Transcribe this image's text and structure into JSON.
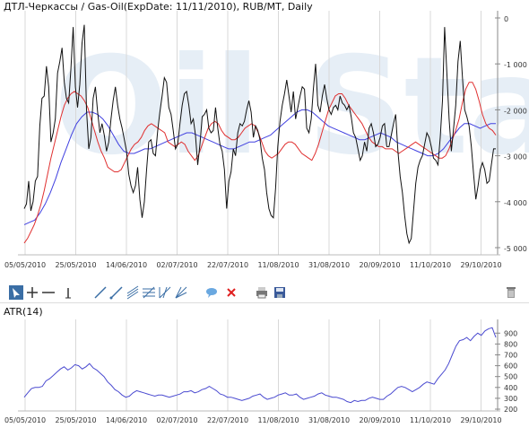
{
  "header": {
    "title": "ДТЛ-Черкассы / Gas-Oil(ExpDate: 11/11/2010), RUB/MT, Daily"
  },
  "watermark": {
    "text": "Oil Stat"
  },
  "colors": {
    "price": "#111111",
    "ma_fast": "#e03030",
    "ma_slow": "#4040e0",
    "atr": "#4a4ad0",
    "grid": "#d8d8d8",
    "axis": "#888888",
    "watermark": "#e6eef6"
  },
  "toolbar": {
    "items": [
      {
        "name": "select-tool-icon",
        "active": true
      },
      {
        "name": "crosshair-tool-icon"
      },
      {
        "name": "horizontal-line-tool-icon"
      },
      {
        "name": "vertical-line-tool-icon"
      },
      {
        "name": "trend-line-tool-icon"
      },
      {
        "name": "ray-tool-icon"
      },
      {
        "name": "channel-tool-icon"
      },
      {
        "name": "fibonacci-tool-icon"
      },
      {
        "name": "pitchfork-tool-icon"
      },
      {
        "name": "fan-tool-icon"
      },
      {
        "name": "comment-tool-icon"
      },
      {
        "name": "delete-tool-icon"
      },
      {
        "name": "print-icon"
      },
      {
        "name": "save-icon"
      },
      {
        "name": "trash-icon"
      }
    ]
  },
  "atr_panel": {
    "title": "ATR(14)"
  },
  "chart_data": [
    {
      "type": "line",
      "title": "ДТЛ-Черкассы / Gas-Oil(ExpDate: 11/11/2010), RUB/MT, Daily",
      "x_tick_labels": [
        "05/05/2010",
        "25/05/2010",
        "14/06/2010",
        "02/07/2010",
        "22/07/2010",
        "11/08/2010",
        "31/08/2010",
        "20/09/2010",
        "11/10/2010",
        "29/10/2010"
      ],
      "y_tick_labels": [
        "0",
        "-1 000",
        "-2 000",
        "-3 000",
        "-4 000",
        "-5 000"
      ],
      "ylim": [
        -5000,
        0
      ],
      "grid": true,
      "series": [
        {
          "role": "price",
          "values": [
            -4150,
            -4050,
            -3550,
            -4200,
            -4000,
            -3550,
            -3450,
            -2350,
            -1750,
            -1700,
            -1050,
            -1500,
            -2700,
            -2500,
            -2200,
            -1200,
            -950,
            -650,
            -1400,
            -1750,
            -1850,
            -1100,
            -200,
            -1500,
            -1950,
            -1450,
            -550,
            -150,
            -2000,
            -2850,
            -2600,
            -1750,
            -1500,
            -2050,
            -2500,
            -2300,
            -2550,
            -2900,
            -2700,
            -2200,
            -1800,
            -1500,
            -1900,
            -2200,
            -2400,
            -2650,
            -2900,
            -3400,
            -3650,
            -3800,
            -3650,
            -3250,
            -3950,
            -4350,
            -4000,
            -3300,
            -2700,
            -2650,
            -2950,
            -3000,
            -2450,
            -2050,
            -1700,
            -1300,
            -1400,
            -1950,
            -2100,
            -2450,
            -2850,
            -2750,
            -2300,
            -1900,
            -1650,
            -1600,
            -1900,
            -2300,
            -2200,
            -2550,
            -3200,
            -2750,
            -2150,
            -2100,
            -2000,
            -2400,
            -2500,
            -2450,
            -1950,
            -2400,
            -2750,
            -2900,
            -3300,
            -4150,
            -3550,
            -3350,
            -2850,
            -3000,
            -2500,
            -2300,
            -2350,
            -2250,
            -2000,
            -1800,
            -2050,
            -2600,
            -2350,
            -2450,
            -2650,
            -3050,
            -3300,
            -3800,
            -4150,
            -4300,
            -4350,
            -3700,
            -2800,
            -2250,
            -1900,
            -1650,
            -1350,
            -1700,
            -2050,
            -1600,
            -2200,
            -1950,
            -1700,
            -1500,
            -1550,
            -2400,
            -2500,
            -2200,
            -1550,
            -1000,
            -1900,
            -2050,
            -1700,
            -1450,
            -1750,
            -2000,
            -2100,
            -1950,
            -1900,
            -2000,
            -1700,
            -1850,
            -1900,
            -2000,
            -1900,
            -2150,
            -2500,
            -2600,
            -2850,
            -3100,
            -3000,
            -2700,
            -2900,
            -2400,
            -2300,
            -2500,
            -2800,
            -2750,
            -2600,
            -2350,
            -2300,
            -2800,
            -2800,
            -2550,
            -2300,
            -2100,
            -2900,
            -3450,
            -3800,
            -4300,
            -4700,
            -4900,
            -4800,
            -4200,
            -3600,
            -3250,
            -3100,
            -3000,
            -2750,
            -2500,
            -2600,
            -2800,
            -3050,
            -3100,
            -3200,
            -2600,
            -1800,
            -200,
            -1200,
            -2200,
            -2900,
            -2400,
            -1900,
            -950,
            -500,
            -1300,
            -2000,
            -2150,
            -2350,
            -2800,
            -3400,
            -3950,
            -3650,
            -3300,
            -3150,
            -3300,
            -3600,
            -3550,
            -3200,
            -2850,
            -2850
          ],
          "x_tick_index": [
            0,
            21,
            42,
            63,
            84,
            105,
            126,
            147,
            168,
            189
          ]
        },
        {
          "role": "ma_fast",
          "values": [
            -4900,
            -4800,
            -4650,
            -4500,
            -4300,
            -4050,
            -3750,
            -3400,
            -3050,
            -2750,
            -2450,
            -2150,
            -1900,
            -1750,
            -1650,
            -1600,
            -1650,
            -1700,
            -1800,
            -1950,
            -2200,
            -2450,
            -2700,
            -2900,
            -3050,
            -3250,
            -3300,
            -3350,
            -3350,
            -3300,
            -3150,
            -3000,
            -2850,
            -2750,
            -2700,
            -2600,
            -2450,
            -2350,
            -2300,
            -2350,
            -2400,
            -2450,
            -2500,
            -2700,
            -2750,
            -2800,
            -2750,
            -2700,
            -2750,
            -2900,
            -3000,
            -3100,
            -3000,
            -2800,
            -2600,
            -2400,
            -2300,
            -2250,
            -2300,
            -2450,
            -2550,
            -2600,
            -2650,
            -2650,
            -2600,
            -2500,
            -2400,
            -2350,
            -2300,
            -2350,
            -2500,
            -2700,
            -2900,
            -3000,
            -3050,
            -3000,
            -2950,
            -2850,
            -2750,
            -2700,
            -2700,
            -2750,
            -2850,
            -2950,
            -3000,
            -3050,
            -3100,
            -2950,
            -2750,
            -2500,
            -2250,
            -2000,
            -1850,
            -1700,
            -1650,
            -1650,
            -1750,
            -1900,
            -2000,
            -2100,
            -2200,
            -2300,
            -2450,
            -2600,
            -2700,
            -2750,
            -2800,
            -2800,
            -2850,
            -2850,
            -2850,
            -2900,
            -2950,
            -2900,
            -2850,
            -2800,
            -2750,
            -2700,
            -2750,
            -2800,
            -2850,
            -2900,
            -2950,
            -3000,
            -3050,
            -3050,
            -3000,
            -2850,
            -2650,
            -2450,
            -2200,
            -1850,
            -1550,
            -1400,
            -1400,
            -1550,
            -1800,
            -2100,
            -2300,
            -2400,
            -2450,
            -2550
          ],
          "x_tick_index": [
            0,
            14,
            28,
            42,
            56,
            70,
            84,
            98,
            112,
            126
          ]
        },
        {
          "role": "ma_slow",
          "values": [
            -4500,
            -4450,
            -4400,
            -4250,
            -4050,
            -3800,
            -3500,
            -3150,
            -2850,
            -2550,
            -2300,
            -2150,
            -2050,
            -2050,
            -2100,
            -2200,
            -2350,
            -2550,
            -2750,
            -2900,
            -2950,
            -2950,
            -2900,
            -2850,
            -2850,
            -2800,
            -2750,
            -2700,
            -2650,
            -2600,
            -2550,
            -2500,
            -2500,
            -2550,
            -2600,
            -2650,
            -2700,
            -2750,
            -2800,
            -2850,
            -2850,
            -2800,
            -2750,
            -2700,
            -2700,
            -2650,
            -2600,
            -2550,
            -2450,
            -2350,
            -2250,
            -2150,
            -2050,
            -2000,
            -2000,
            -2050,
            -2150,
            -2250,
            -2350,
            -2400,
            -2450,
            -2500,
            -2550,
            -2600,
            -2650,
            -2650,
            -2600,
            -2550,
            -2500,
            -2550,
            -2600,
            -2700,
            -2750,
            -2800,
            -2850,
            -2900,
            -2950,
            -3000,
            -3000,
            -2950,
            -2850,
            -2700,
            -2550,
            -2400,
            -2300,
            -2300,
            -2350,
            -2400,
            -2350,
            -2300,
            -2300
          ],
          "x_tick_index": [
            0,
            9,
            19,
            28,
            37,
            46,
            56,
            65,
            74,
            84
          ]
        }
      ]
    },
    {
      "type": "line",
      "title": "ATR(14)",
      "x_tick_labels": [
        "05/05/2010",
        "25/05/2010",
        "14/06/2010",
        "02/07/2010",
        "22/07/2010",
        "11/08/2010",
        "31/08/2010",
        "20/09/2010",
        "11/10/2010",
        "29/10/2010"
      ],
      "y_tick_labels": [
        "900",
        "800",
        "700",
        "600",
        "500",
        "400",
        "300",
        "200"
      ],
      "ylim": [
        200,
        960
      ],
      "grid": true,
      "series": [
        {
          "role": "atr",
          "values": [
            310,
            350,
            390,
            400,
            400,
            410,
            460,
            480,
            510,
            540,
            570,
            590,
            560,
            580,
            610,
            600,
            570,
            590,
            620,
            580,
            560,
            530,
            500,
            450,
            420,
            380,
            360,
            330,
            310,
            320,
            350,
            370,
            360,
            350,
            340,
            330,
            320,
            330,
            330,
            320,
            310,
            320,
            330,
            340,
            360,
            360,
            370,
            350,
            360,
            380,
            390,
            410,
            390,
            370,
            340,
            330,
            310,
            310,
            300,
            290,
            280,
            290,
            300,
            320,
            330,
            340,
            310,
            290,
            300,
            310,
            330,
            340,
            350,
            330,
            330,
            340,
            310,
            290,
            300,
            310,
            320,
            340,
            350,
            330,
            320,
            310,
            310,
            300,
            290,
            270,
            260,
            280,
            270,
            280,
            280,
            300,
            310,
            300,
            290,
            290,
            320,
            340,
            370,
            400,
            410,
            400,
            380,
            360,
            380,
            400,
            430,
            450,
            440,
            430,
            480,
            520,
            560,
            620,
            700,
            780,
            830,
            840,
            860,
            830,
            870,
            900,
            880,
            920,
            940,
            950,
            860
          ],
          "x_tick_index": [
            0,
            14,
            27,
            41,
            55,
            69,
            82,
            96,
            110,
            124
          ]
        }
      ]
    }
  ]
}
